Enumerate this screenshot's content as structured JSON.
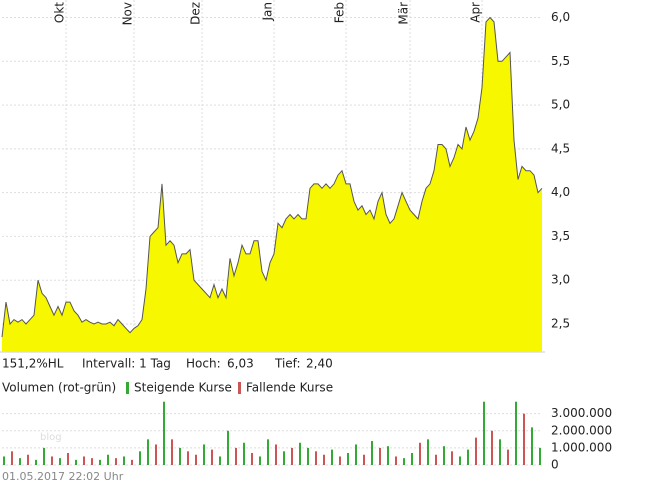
{
  "chart_data": [
    {
      "type": "area",
      "color": "#f7f700",
      "line_color": "#555555",
      "grid": true,
      "xlim": [
        0,
        135
      ],
      "ylim": [
        2.18,
        6.2
      ],
      "xticks": [
        {
          "value": 16,
          "label": "Okt"
        },
        {
          "value": 33,
          "label": "Nov"
        },
        {
          "value": 50,
          "label": "Dez"
        },
        {
          "value": 68,
          "label": "Jan"
        },
        {
          "value": 86,
          "label": "Feb"
        },
        {
          "value": 102,
          "label": "Mär"
        },
        {
          "value": 120,
          "label": "Apr"
        }
      ],
      "yticks": [
        {
          "value": 2.5,
          "label": "2,5"
        },
        {
          "value": 3,
          "label": "3,0"
        },
        {
          "value": 3.5,
          "label": "3,5"
        },
        {
          "value": 4,
          "label": "4,0"
        },
        {
          "value": 4.5,
          "label": "4,5"
        },
        {
          "value": 5,
          "label": "5,0"
        },
        {
          "value": 5.5,
          "label": "5,5"
        },
        {
          "value": 6,
          "label": "6,0"
        }
      ],
      "values": [
        2.35,
        2.75,
        2.5,
        2.55,
        2.52,
        2.55,
        2.5,
        2.55,
        2.6,
        3.0,
        2.85,
        2.8,
        2.7,
        2.6,
        2.7,
        2.6,
        2.75,
        2.75,
        2.65,
        2.6,
        2.52,
        2.55,
        2.52,
        2.5,
        2.52,
        2.5,
        2.5,
        2.52,
        2.48,
        2.55,
        2.5,
        2.45,
        2.4,
        2.45,
        2.48,
        2.55,
        2.9,
        3.5,
        3.55,
        3.6,
        4.1,
        3.4,
        3.45,
        3.4,
        3.2,
        3.3,
        3.3,
        3.35,
        3.0,
        2.95,
        2.9,
        2.85,
        2.8,
        2.95,
        2.8,
        2.9,
        2.8,
        3.25,
        3.05,
        3.2,
        3.4,
        3.3,
        3.3,
        3.45,
        3.45,
        3.1,
        3.0,
        3.2,
        3.3,
        3.65,
        3.6,
        3.7,
        3.75,
        3.7,
        3.75,
        3.7,
        3.7,
        4.05,
        4.1,
        4.1,
        4.05,
        4.1,
        4.05,
        4.1,
        4.2,
        4.25,
        4.1,
        4.1,
        3.9,
        3.8,
        3.85,
        3.75,
        3.8,
        3.7,
        3.9,
        4.0,
        3.75,
        3.65,
        3.7,
        3.85,
        4.0,
        3.9,
        3.8,
        3.75,
        3.7,
        3.9,
        4.05,
        4.1,
        4.25,
        4.55,
        4.55,
        4.5,
        4.3,
        4.4,
        4.55,
        4.5,
        4.75,
        4.6,
        4.7,
        4.85,
        5.2,
        5.95,
        6.0,
        5.95,
        5.5,
        5.5,
        5.55,
        5.6,
        4.6,
        4.15,
        4.3,
        4.25,
        4.25,
        4.2,
        4.0,
        4.05
      ],
      "stats": {
        "range": "151,2%HL",
        "interval": "Intervall: 1 Tag",
        "high_label": "Hoch:",
        "high": "6,03",
        "low_label": "Tief:",
        "low": "2,40"
      }
    },
    {
      "type": "volume",
      "title": "Volumen (rot-grün)",
      "xlim": [
        0,
        67
      ],
      "ylim": [
        0,
        3800000
      ],
      "yticks": [
        {
          "value": 0,
          "label": "0"
        },
        {
          "value": 1000000,
          "label": "1.000.000"
        },
        {
          "value": 2000000,
          "label": "2.000.000"
        },
        {
          "value": 3000000,
          "label": "3.000.000"
        }
      ],
      "series": [
        {
          "name": "Steigende Kurse",
          "color": "#33aa33"
        },
        {
          "name": "Fallende Kurse",
          "color": "#cc5555"
        }
      ],
      "values": [
        500000,
        800000,
        400000,
        600000,
        300000,
        1000000,
        500000,
        400000,
        700000,
        300000,
        500000,
        400000,
        300000,
        600000,
        400000,
        500000,
        300000,
        800000,
        1500000,
        1200000,
        3700000,
        1500000,
        1000000,
        800000,
        600000,
        1200000,
        900000,
        500000,
        2000000,
        1000000,
        1300000,
        700000,
        500000,
        1500000,
        1200000,
        800000,
        1000000,
        1300000,
        1000000,
        800000,
        600000,
        900000,
        500000,
        700000,
        1200000,
        600000,
        1400000,
        1000000,
        1100000,
        500000,
        400000,
        700000,
        1300000,
        1500000,
        600000,
        1100000,
        800000,
        500000,
        900000,
        1600000,
        3700000,
        2000000,
        1500000,
        900000,
        3700000,
        3000000,
        2200000,
        1000000
      ],
      "up": [
        true,
        false,
        true,
        false,
        true,
        true,
        false,
        true,
        false,
        true,
        false,
        false,
        true,
        true,
        false,
        true,
        false,
        true,
        true,
        false,
        true,
        false,
        true,
        false,
        false,
        true,
        false,
        true,
        true,
        false,
        true,
        false,
        true,
        true,
        false,
        true,
        false,
        true,
        true,
        false,
        false,
        true,
        false,
        true,
        true,
        false,
        true,
        false,
        true,
        false,
        true,
        true,
        false,
        true,
        false,
        true,
        false,
        true,
        true,
        false,
        true,
        false,
        true,
        false,
        true,
        false,
        true,
        true
      ]
    }
  ],
  "footer": "01.05.2017 22:02 Uhr",
  "watermark": "blog"
}
